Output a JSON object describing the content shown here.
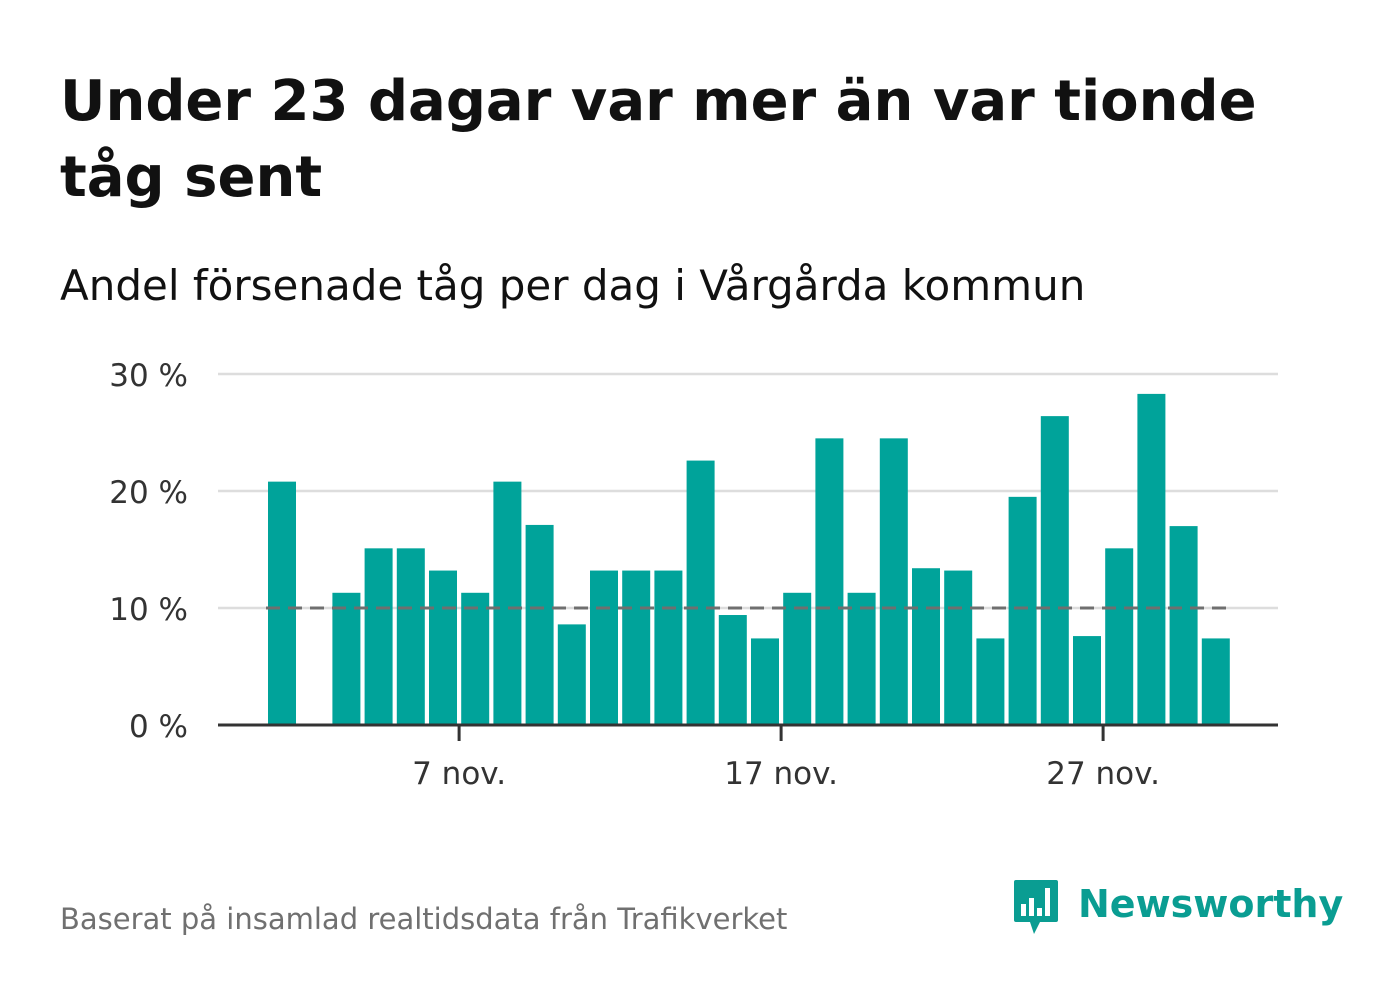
{
  "header": {
    "title": "Under 23 dagar var mer än var tionde tåg sent",
    "subtitle": "Andel försenade tåg per dag i Vårgårda kommun"
  },
  "footer": {
    "source": "Baserat på insamlad realtidsdata från Trafikverket",
    "brand_name": "Newsworthy",
    "brand_icon": "newsworthy-logo-icon"
  },
  "colors": {
    "bar": "#00a39a",
    "reference_line": "#6f6f6f",
    "grid": "#dddddd",
    "axis": "#333333",
    "brand": "#0a9d92"
  },
  "chart_data": {
    "type": "bar",
    "title": "Andel försenade tåg per dag i Vårgårda kommun",
    "x": [
      1,
      2,
      3,
      4,
      5,
      6,
      7,
      8,
      9,
      10,
      11,
      12,
      13,
      14,
      15,
      16,
      17,
      18,
      19,
      20,
      21,
      22,
      23,
      24,
      25,
      26,
      27,
      28,
      29,
      30
    ],
    "values": [
      20.8,
      null,
      11.3,
      15.1,
      15.1,
      13.2,
      11.3,
      20.8,
      17.1,
      8.6,
      13.2,
      13.2,
      13.2,
      22.6,
      9.4,
      7.4,
      11.3,
      24.5,
      11.3,
      24.5,
      13.4,
      13.2,
      7.4,
      19.5,
      26.4,
      7.6,
      15.1,
      28.3,
      17.0,
      7.4
    ],
    "x_ticks": [
      {
        "value": 7,
        "label": "7 nov."
      },
      {
        "value": 17,
        "label": "17 nov."
      },
      {
        "value": 27,
        "label": "27 nov."
      }
    ],
    "y_ticks": [
      {
        "value": 0,
        "label": "0 %"
      },
      {
        "value": 10,
        "label": "10 %"
      },
      {
        "value": 20,
        "label": "20 %"
      },
      {
        "value": 30,
        "label": "30 %"
      }
    ],
    "ylim": [
      0,
      30
    ],
    "reference_line": 10,
    "xlabel": "",
    "ylabel": "",
    "grid": true,
    "legend": false
  }
}
